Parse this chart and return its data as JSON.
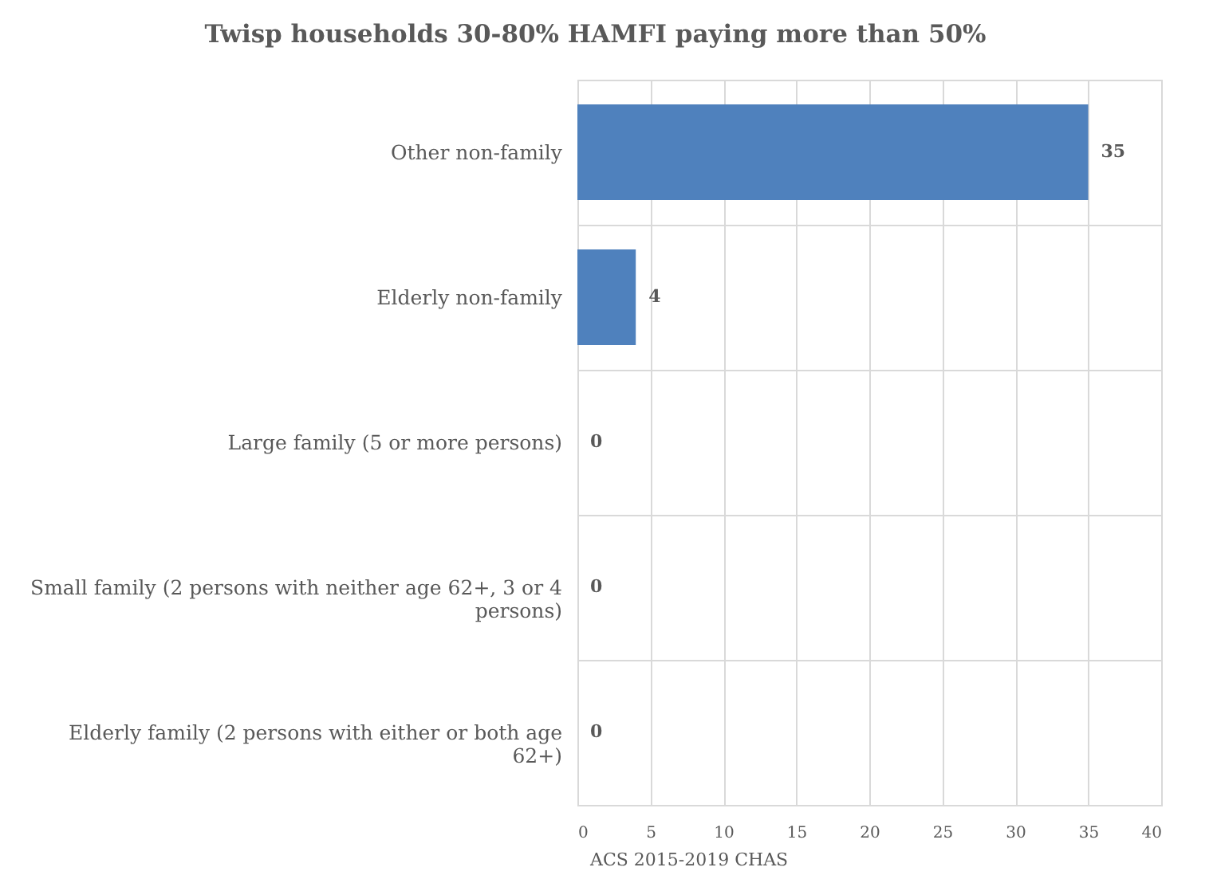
{
  "chart_data": {
    "type": "bar",
    "orientation": "horizontal",
    "title": "Twisp households 30-80% HAMFI paying more than 50%",
    "categories": [
      "Other non-family",
      "Elderly non-family",
      "Large family (5 or more persons)",
      "Small family (2 persons with neither age 62+, 3 or 4 persons)",
      "Elderly family (2 persons with either or both age 62+)"
    ],
    "values": [
      35,
      4,
      0,
      0,
      0
    ],
    "color": "#4f81bd",
    "xlim": [
      0,
      40
    ],
    "xticks": [
      0,
      5,
      10,
      15,
      20,
      25,
      30,
      35,
      40
    ],
    "grid": true,
    "data_labels": true,
    "annotations": [
      "ACS 2015-2019  CHAS"
    ]
  }
}
